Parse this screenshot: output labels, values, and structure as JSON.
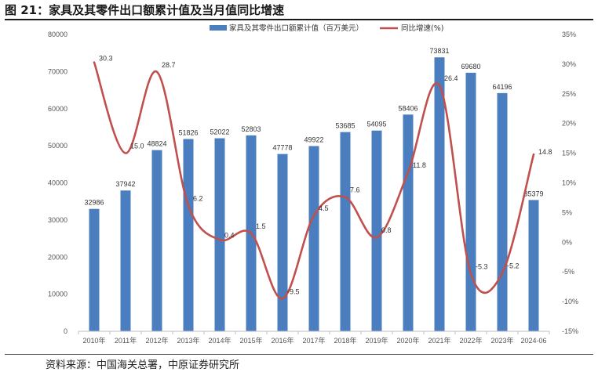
{
  "page": {
    "title": "图 21：家具及其零件出口额累计值及当月值同比增速",
    "source": "资料来源：中国海关总署，中原证券研究所"
  },
  "chart_data": {
    "type": "bar+line",
    "categories": [
      "2010年",
      "2011年",
      "2012年",
      "2013年",
      "2014年",
      "2015年",
      "2016年",
      "2017年",
      "2018年",
      "2019年",
      "2020年",
      "2021年",
      "2022年",
      "2023年",
      "2024-06"
    ],
    "series": [
      {
        "name": "家具及其零件出口额累计值（百万美元）",
        "type": "bar",
        "axis": "left",
        "color": "#4a7ebf",
        "values": [
          32986,
          37942,
          48824,
          51826,
          52022,
          52803,
          47778,
          49922,
          53685,
          54095,
          58406,
          73831,
          69680,
          64196,
          35379
        ],
        "labels": [
          "32986",
          "37942",
          "48824",
          "51826",
          "52022",
          "52803",
          "47778",
          "49922",
          "53685",
          "54095",
          "58406",
          "73831",
          "69680",
          "64196",
          "35379"
        ]
      },
      {
        "name": "同比增速(%)",
        "type": "line",
        "axis": "right",
        "color": "#c0504d",
        "values": [
          30.3,
          15.0,
          28.7,
          6.2,
          0.4,
          1.5,
          -9.5,
          4.5,
          7.6,
          0.8,
          11.8,
          26.4,
          -5.3,
          -5.2,
          14.8
        ],
        "labels": [
          "30.3",
          "15.0",
          "28.7",
          "6.2",
          "0.4",
          "1.5",
          "-9.5",
          "4.5",
          "7.6",
          "0.8",
          "11.8",
          "26.4",
          "-5.3",
          "-5.2",
          "14.8"
        ]
      }
    ],
    "y_left": {
      "min": 0,
      "max": 80000,
      "ticks": [
        "0",
        "10000",
        "20000",
        "30000",
        "40000",
        "50000",
        "60000",
        "70000",
        "80000"
      ]
    },
    "y_right": {
      "min": -15,
      "max": 35,
      "ticks": [
        "-15%",
        "-10%",
        "-5%",
        "0%",
        "5%",
        "10%",
        "15%",
        "20%",
        "25%",
        "30%",
        "35%"
      ]
    },
    "legend_position": "top",
    "grid": false
  }
}
